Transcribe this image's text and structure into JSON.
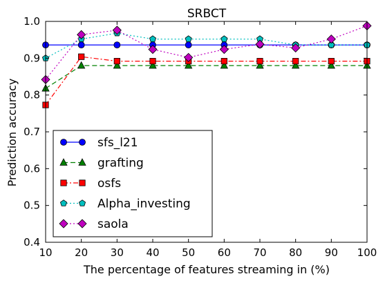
{
  "chart_data": {
    "type": "line",
    "title": "SRBCT",
    "xlabel": "The percentage of features streaming in (%)",
    "ylabel": "Prediction accuracy",
    "x": [
      10,
      20,
      30,
      40,
      50,
      60,
      70,
      80,
      90,
      100
    ],
    "xlim": [
      10,
      100
    ],
    "ylim": [
      0.4,
      1.0
    ],
    "xticks": [
      "10",
      "20",
      "30",
      "40",
      "50",
      "60",
      "70",
      "80",
      "90",
      "100"
    ],
    "yticks": [
      "0.4",
      "0.5",
      "0.6",
      "0.7",
      "0.8",
      "0.9",
      "1.0"
    ],
    "grid": false,
    "legend_position": "lower-left",
    "series": [
      {
        "name": "sfs_l21",
        "color": "#0000ff",
        "marker": "circle",
        "linestyle": "solid",
        "values": [
          0.936,
          0.936,
          0.936,
          0.936,
          0.936,
          0.936,
          0.936,
          0.936,
          0.936,
          0.936
        ]
      },
      {
        "name": "grafting",
        "color": "#008000",
        "marker": "triangle",
        "linestyle": "dashed",
        "values": [
          0.818,
          0.88,
          0.88,
          0.88,
          0.88,
          0.88,
          0.88,
          0.88,
          0.88,
          0.88
        ]
      },
      {
        "name": "osfs",
        "color": "#ff0000",
        "marker": "square",
        "linestyle": "dashdot",
        "values": [
          0.773,
          0.904,
          0.892,
          0.892,
          0.892,
          0.892,
          0.892,
          0.892,
          0.892,
          0.892
        ]
      },
      {
        "name": "Alpha_investing",
        "color": "#00bfbf",
        "marker": "pentagon",
        "linestyle": "dotted",
        "values": [
          0.9,
          0.952,
          0.968,
          0.952,
          0.952,
          0.952,
          0.952,
          0.936,
          0.936,
          0.936
        ]
      },
      {
        "name": "saola",
        "color": "#bf00bf",
        "marker": "diamond",
        "linestyle": "dotted",
        "values": [
          0.842,
          0.964,
          0.976,
          0.924,
          0.902,
          0.924,
          0.938,
          0.928,
          0.952,
          0.988
        ]
      }
    ]
  }
}
